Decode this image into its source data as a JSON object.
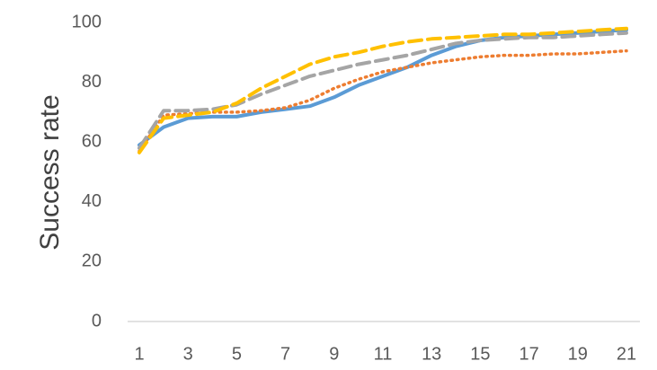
{
  "chart_data": {
    "type": "line",
    "title": "",
    "xlabel": "",
    "ylabel": "Success rate",
    "ylim": [
      0,
      100
    ],
    "yticks": [
      0,
      20,
      40,
      60,
      80,
      100
    ],
    "xlim": [
      1,
      21
    ],
    "xticks": [
      1,
      3,
      5,
      7,
      9,
      11,
      13,
      15,
      17,
      19,
      21
    ],
    "grid": false,
    "legend": "none",
    "x": [
      1,
      2,
      3,
      4,
      5,
      6,
      7,
      8,
      9,
      10,
      11,
      12,
      13,
      14,
      15,
      16,
      17,
      18,
      19,
      20,
      21
    ],
    "series": [
      {
        "color": "#5B9BD5",
        "style": "solid",
        "values": [
          59,
          65,
          68,
          68.5,
          68.5,
          70,
          71,
          72,
          75,
          79,
          82,
          85,
          89,
          92,
          94,
          95,
          95.5,
          96,
          96.5,
          97,
          97.5
        ]
      },
      {
        "color": "#ED7D31",
        "style": "dotted",
        "values": [
          57,
          69,
          69.5,
          70,
          70,
          70.5,
          71.5,
          74,
          78,
          81,
          83.5,
          85,
          86.5,
          87.5,
          88.5,
          89,
          89,
          89.5,
          89.5,
          90,
          90.5
        ]
      },
      {
        "color": "#A5A5A5",
        "style": "dashed",
        "values": [
          58,
          70.5,
          70.5,
          71,
          72.5,
          76,
          79,
          82,
          84,
          86,
          87.5,
          89,
          91,
          93,
          94,
          94.5,
          95,
          95,
          95.5,
          96,
          96.5
        ]
      },
      {
        "color": "#FFC000",
        "style": "dashed",
        "values": [
          56.5,
          68,
          69,
          70,
          73,
          78,
          82,
          86,
          88.5,
          90,
          92,
          93.5,
          94.5,
          95,
          95.5,
          96,
          96,
          96.5,
          97,
          97.5,
          98
        ]
      }
    ]
  }
}
